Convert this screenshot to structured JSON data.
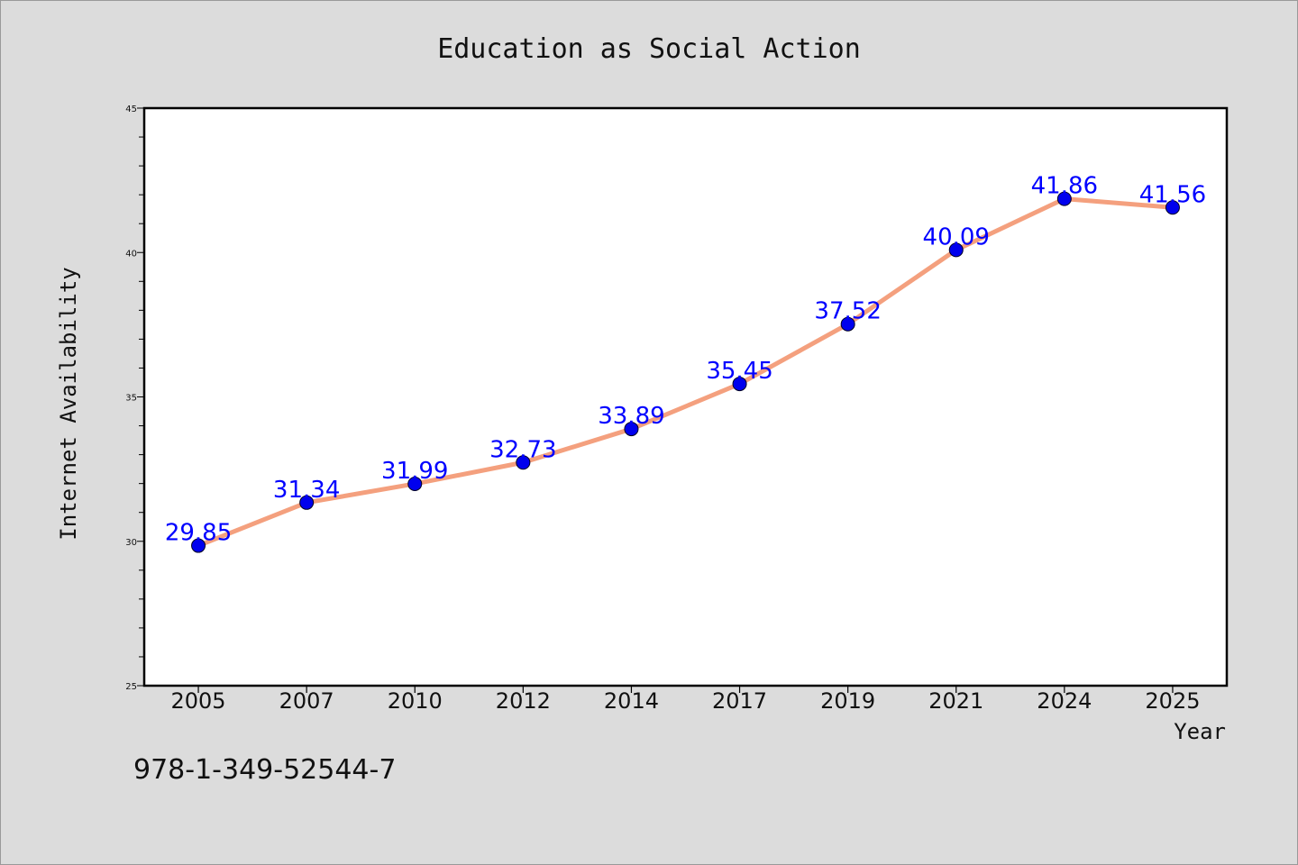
{
  "chart_data": {
    "type": "line",
    "title": "Education as Social Action",
    "xlabel": "Year",
    "ylabel": "Internet Availability",
    "categories": [
      "2005",
      "2007",
      "2010",
      "2012",
      "2014",
      "2017",
      "2019",
      "2021",
      "2024",
      "2025"
    ],
    "values": [
      29.85,
      31.34,
      31.99,
      32.73,
      33.89,
      35.45,
      37.52,
      40.09,
      41.86,
      41.56
    ],
    "data_labels": [
      "29.85",
      "31.34",
      "31.99",
      "32.73",
      "33.89",
      "35.45",
      "37.52",
      "40.09",
      "41.86",
      "41.56"
    ],
    "ylim": [
      25,
      45
    ],
    "yticks": [
      "25",
      "30",
      "35",
      "40",
      "45"
    ],
    "grid": false,
    "line_color": "#f4a07e",
    "marker_color": "#0000ee",
    "label_color": "#0000ff"
  },
  "footer": {
    "isbn": "978-1-349-52544-7"
  }
}
